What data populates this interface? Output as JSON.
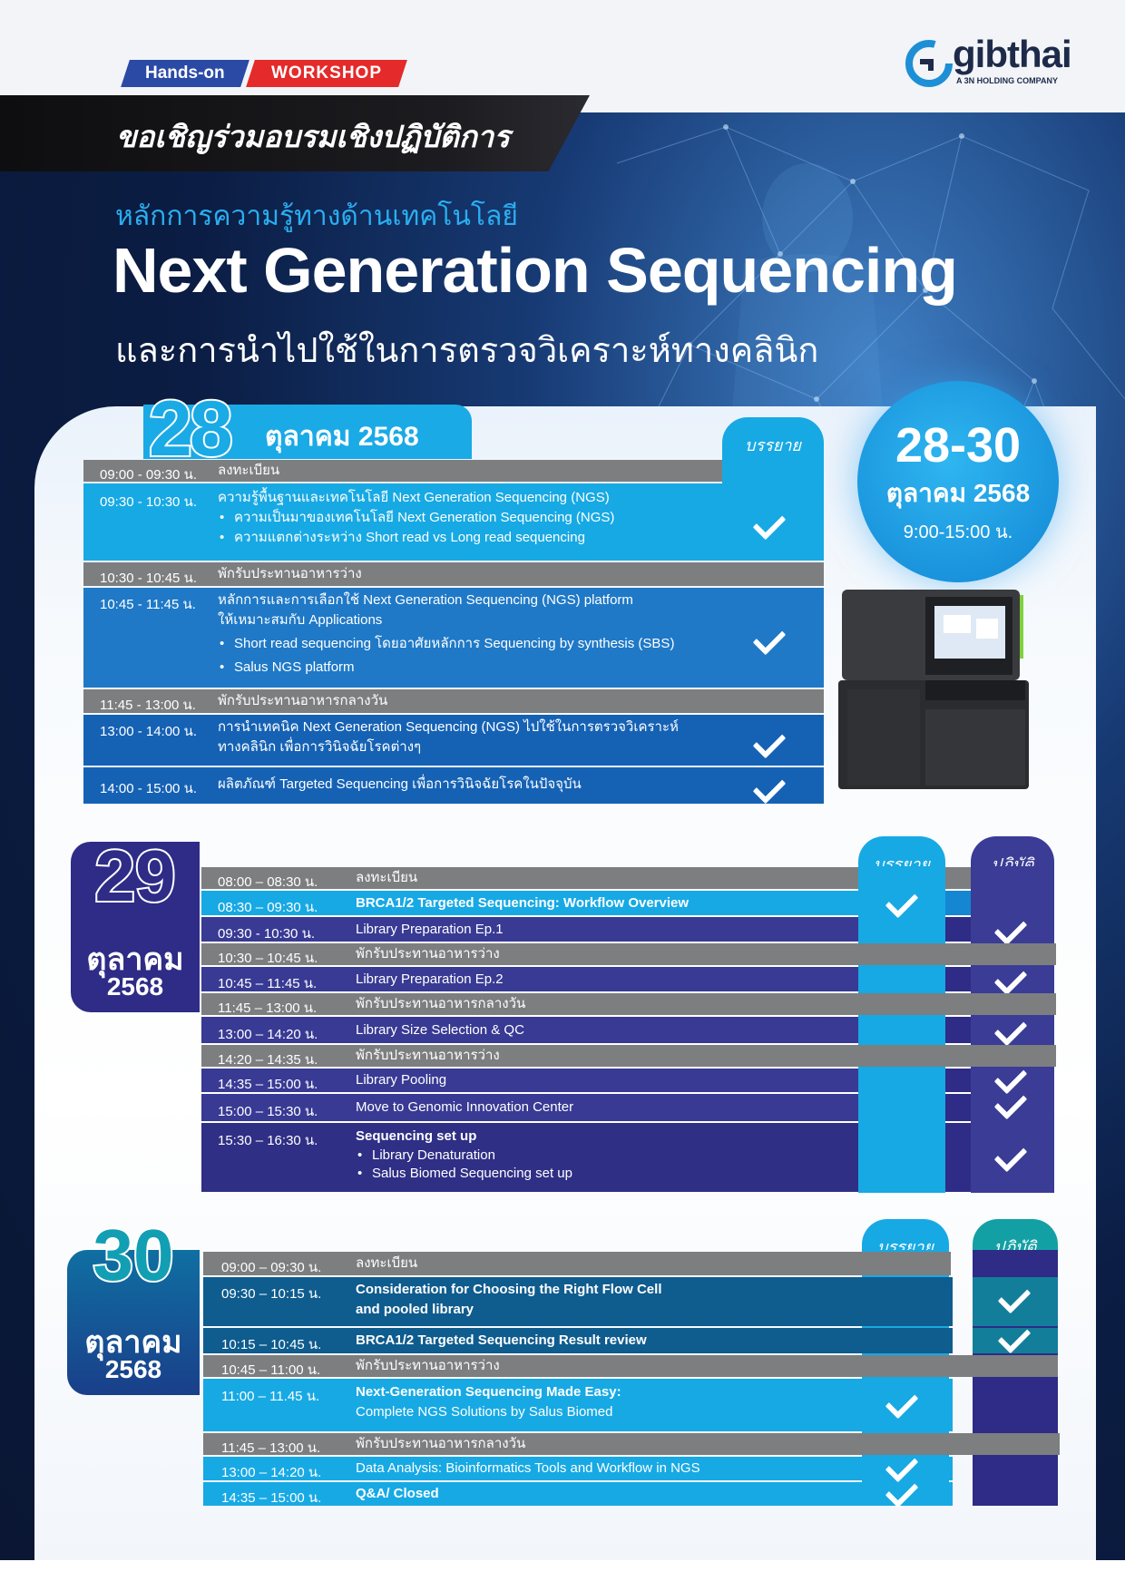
{
  "header": {
    "badge_hands_on": "Hands-on",
    "badge_workshop": "WORKSHOP",
    "invite": "ขอเชิญร่วมอบรมเชิงปฏิบัติการ",
    "subtitle": "หลักการความรู้ทางด้านเทคโนโลยี",
    "title": "Next Generation Sequencing",
    "title_line2": "และการนำไปใช้ในการตรวจวิเคราะห์ทางคลินิก"
  },
  "logo": {
    "word": "gibthai",
    "sub": "A 3N HOLDING COMPANY"
  },
  "date_circle": {
    "range": "28-30",
    "month": "ตุลาคม 2568",
    "time": "9:00-15:00 น."
  },
  "day28": {
    "num": "28",
    "month": "ตุลาคม 2568",
    "col_lecture": "บรรยาย",
    "rows": [
      {
        "time": "09:00 - 09:30 น.",
        "lines": [
          "ลงทะเบียน"
        ],
        "bullets": []
      },
      {
        "time": "09:30 - 10:30 น.",
        "lines": [
          "ความรู้พื้นฐานและเทคโนโลยี Next Generation Sequencing (NGS)"
        ],
        "bullets": [
          "ความเป็นมาของเทคโนโลยี Next Generation Sequencing (NGS)",
          "ความแตกต่างระหว่าง Short read vs Long read sequencing"
        ]
      },
      {
        "time": "10:30 - 10:45 น.",
        "lines": [
          "พักรับประทานอาหารว่าง"
        ],
        "bullets": []
      },
      {
        "time": "10:45 - 11:45 น.",
        "lines": [
          "หลักการและการเลือกใช้ Next Generation Sequencing (NGS) platform",
          "ให้เหมาะสมกับ Applications"
        ],
        "bullets": [
          "Short read sequencing โดยอาศัยหลักการ Sequencing by synthesis (SBS)",
          "Salus NGS platform"
        ]
      },
      {
        "time": "11:45 - 13:00 น.",
        "lines": [
          "พักรับประทานอาหารกลางวัน"
        ],
        "bullets": []
      },
      {
        "time": "13:00 - 14:00 น.",
        "lines": [
          "การนำเทคนิค Next Generation Sequencing (NGS) ไปใช้ในการตรวจวิเคราะห์",
          "ทางคลินิก เพื่อการวินิจฉัยโรคต่างๆ"
        ],
        "bullets": []
      },
      {
        "time": "14:00 - 15:00 น.",
        "lines": [
          "ผลิตภัณฑ์ Targeted Sequencing เพื่อการวินิจฉัยโรคในปัจจุบัน"
        ],
        "bullets": []
      }
    ]
  },
  "day29": {
    "num": "29",
    "month": "ตุลาคม",
    "year": "2568",
    "col_lecture": "บรรยาย",
    "col_practice": "ปฏิบัติ",
    "rows": [
      {
        "time": "08:00 – 08:30 น.",
        "lines": [
          "ลงทะเบียน"
        ],
        "bullets": []
      },
      {
        "time": "08:30 – 09:30 น.",
        "lines": [
          "BRCA1/2 Targeted Sequencing: Workflow Overview"
        ],
        "bullets": []
      },
      {
        "time": "09:30 - 10:30 น.",
        "lines": [
          "Library Preparation Ep.1"
        ],
        "bullets": []
      },
      {
        "time": "10:30 – 10:45 น.",
        "lines": [
          "พักรับประทานอาหารว่าง"
        ],
        "bullets": []
      },
      {
        "time": "10:45 – 11:45 น.",
        "lines": [
          "Library Preparation Ep.2"
        ],
        "bullets": []
      },
      {
        "time": "11:45 – 13:00 น.",
        "lines": [
          "พักรับประทานอาหารกลางวัน"
        ],
        "bullets": []
      },
      {
        "time": "13:00 – 14:20 น.",
        "lines": [
          "Library Size Selection & QC"
        ],
        "bullets": []
      },
      {
        "time": "14:20 – 14:35 น.",
        "lines": [
          "พักรับประทานอาหารว่าง"
        ],
        "bullets": []
      },
      {
        "time": "14:35 – 15:00 น.",
        "lines": [
          "Library Pooling"
        ],
        "bullets": []
      },
      {
        "time": "15:00 – 15:30 น.",
        "lines": [
          "Move to Genomic Innovation Center"
        ],
        "bullets": []
      },
      {
        "time": "15:30 – 16:30 น.",
        "lines": [
          "Sequencing set up"
        ],
        "bullets": [
          "Library Denaturation",
          "Salus Biomed Sequencing set up"
        ]
      }
    ]
  },
  "day30": {
    "num": "30",
    "month": "ตุลาคม",
    "year": "2568",
    "col_lecture": "บรรยาย",
    "col_practice": "ปฏิบัติ",
    "rows": [
      {
        "time": "09:00 – 09:30 น.",
        "lines": [
          "ลงทะเบียน"
        ],
        "bullets": []
      },
      {
        "time": "09:30 – 10:15 น.",
        "lines": [
          "Consideration for Choosing the Right Flow Cell",
          "and pooled library"
        ],
        "bullets": []
      },
      {
        "time": "10:15 – 10:45 น.",
        "lines": [
          "BRCA1/2 Targeted Sequencing Result review"
        ],
        "bullets": []
      },
      {
        "time": "10:45 – 11:00 น.",
        "lines": [
          "พักรับประทานอาหารว่าง"
        ],
        "bullets": []
      },
      {
        "time": "11:00 – 11.45 น.",
        "lines": [
          "Next-Generation Sequencing Made Easy:",
          "Complete NGS Solutions by Salus Biomed"
        ],
        "bullets": []
      },
      {
        "time": "11:45 – 13:00 น.",
        "lines": [
          "พักรับประทานอาหารกลางวัน"
        ],
        "bullets": []
      },
      {
        "time": "13:00 – 14:20 น.",
        "lines": [
          "Data Analysis: Bioinformatics Tools and Workflow in NGS"
        ],
        "bullets": []
      },
      {
        "time": "14:35 – 15:00 น.",
        "lines": [
          "Q&A/ Closed"
        ],
        "bullets": []
      }
    ]
  }
}
